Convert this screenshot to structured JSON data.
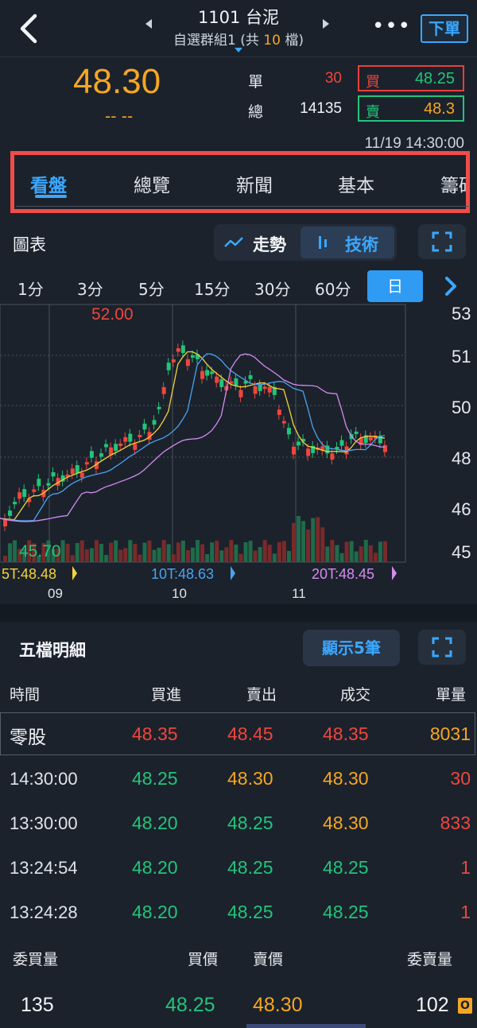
{
  "header": {
    "title": "1101 台泥",
    "group_prefix": "自選群組1 (共 ",
    "group_count": "10",
    "group_suffix": " 檔)",
    "more": "•••",
    "order_label": "下單"
  },
  "quote": {
    "price": "48.30",
    "change": "-- --",
    "single_label": "單",
    "single_value": "30",
    "total_label": "總",
    "total_value": "14135",
    "bid_label": "買",
    "bid_value": "48.25",
    "ask_label": "賣",
    "ask_value": "48.3",
    "datetime": "11/19 14:30:00"
  },
  "tabs": [
    "看盤",
    "總覽",
    "新聞",
    "基本",
    "籌碼"
  ],
  "chart": {
    "title": "圖表",
    "trend_label": "走勢",
    "tech_label": "技術",
    "periods": [
      "1分",
      "3分",
      "5分",
      "15分",
      "30分",
      "60分",
      "日"
    ],
    "active_period": "日",
    "high_label": "52.00",
    "low_label": "45.70",
    "y_ticks": [
      "53",
      "51",
      "50",
      "48",
      "46",
      "45"
    ],
    "x_ticks": [
      "09",
      "10",
      "11"
    ],
    "ma5": "5T:48.48",
    "ma10": "10T:48.63",
    "ma20": "20T:48.45",
    "colors": {
      "up": "#f0463c",
      "down": "#22c47a",
      "ma5": "#f2d43a",
      "ma10": "#4aa3f0",
      "ma20": "#d48cf0"
    }
  },
  "chart_data": {
    "type": "candlestick",
    "x_ticks": [
      "09",
      "10",
      "11"
    ],
    "ylim": [
      45,
      53
    ],
    "high": 52.0,
    "low": 45.7,
    "series": [
      {
        "name": "5T",
        "last": 48.48
      },
      {
        "name": "10T",
        "last": 48.63
      },
      {
        "name": "20T",
        "last": 48.45
      }
    ]
  },
  "five": {
    "title": "五檔明細",
    "show_label": "顯示5筆",
    "headers": [
      "時間",
      "買進",
      "賣出",
      "成交",
      "單量"
    ],
    "odd_lot": {
      "time": "零股",
      "bid": "48.35",
      "ask": "48.45",
      "deal": "48.35",
      "vol": "8031"
    },
    "rows": [
      {
        "time": "14:30:00",
        "bid": "48.25",
        "ask": "48.30",
        "deal": "48.30",
        "vol": "30"
      },
      {
        "time": "13:30:00",
        "bid": "48.20",
        "ask": "48.25",
        "deal": "48.30",
        "vol": "833"
      },
      {
        "time": "13:24:54",
        "bid": "48.20",
        "ask": "48.25",
        "deal": "48.25",
        "vol": "1"
      },
      {
        "time": "13:24:28",
        "bid": "48.20",
        "ask": "48.25",
        "deal": "48.25",
        "vol": "1"
      }
    ],
    "footer_headers": [
      "委買量",
      "買價",
      "賣價",
      "委賣量"
    ],
    "footer": {
      "bid_qty": "135",
      "bid_price": "48.25",
      "ask_price": "48.30",
      "ask_qty": "102",
      "badge": "O"
    }
  }
}
